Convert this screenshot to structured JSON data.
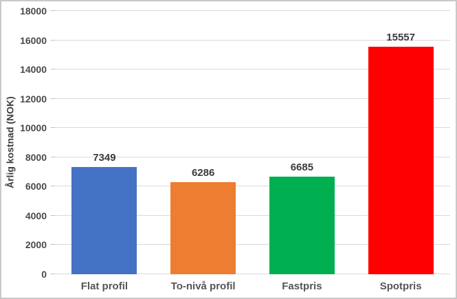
{
  "chart_data": {
    "type": "bar",
    "categories": [
      "Flat profil",
      "To-nivå profil",
      "Fastpris",
      "Spotpris"
    ],
    "values": [
      7349,
      6286,
      6685,
      15557
    ],
    "bar_colors": [
      "#4472C4",
      "#ED7D31",
      "#00B050",
      "#FF0000"
    ],
    "ylabel": "Årlig kostnad (NOK)",
    "xlabel": "",
    "ylim": [
      0,
      18000
    ],
    "ytick_step": 2000,
    "grid": "horizontal-only",
    "legend": false,
    "data_labels": "above-bars"
  },
  "colors": {
    "background": "#ffffff",
    "border": "#c9c9c9",
    "gridline": "#d9d9d9",
    "axis_text": "#4a4a4a",
    "data_label_text": "#3b3b3b",
    "category_text": "#555555"
  }
}
